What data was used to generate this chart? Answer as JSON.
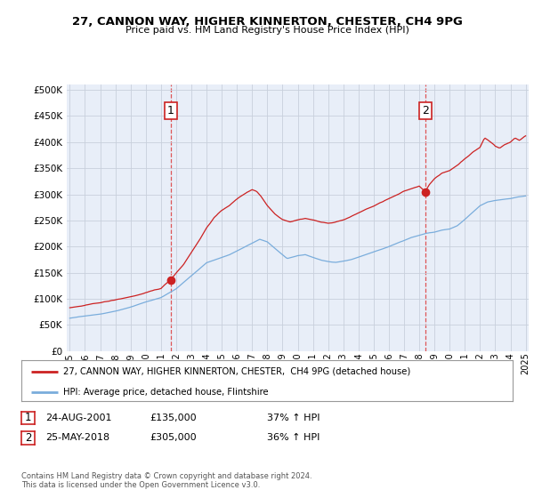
{
  "title": "27, CANNON WAY, HIGHER KINNERTON, CHESTER, CH4 9PG",
  "subtitle": "Price paid vs. HM Land Registry's House Price Index (HPI)",
  "background_color": "#ffffff",
  "grid_color": "#c8d0dc",
  "plot_bg_color": "#e8eef8",
  "sale1_date": 2001.64,
  "sale1_price": 135000,
  "sale1_label": "1",
  "sale2_date": 2018.39,
  "sale2_price": 305000,
  "sale2_label": "2",
  "legend_line1": "27, CANNON WAY, HIGHER KINNERTON, CHESTER,  CH4 9PG (detached house)",
  "legend_line2": "HPI: Average price, detached house, Flintshire",
  "table_row1": [
    "1",
    "24-AUG-2001",
    "£135,000",
    "37% ↑ HPI"
  ],
  "table_row2": [
    "2",
    "25-MAY-2018",
    "£305,000",
    "36% ↑ HPI"
  ],
  "footnote": "Contains HM Land Registry data © Crown copyright and database right 2024.\nThis data is licensed under the Open Government Licence v3.0.",
  "xlim": [
    1994.8,
    2025.2
  ],
  "ylim": [
    0,
    510000
  ],
  "yticks": [
    0,
    50000,
    100000,
    150000,
    200000,
    250000,
    300000,
    350000,
    400000,
    450000,
    500000
  ],
  "xticks": [
    1995,
    1996,
    1997,
    1998,
    1999,
    2000,
    2001,
    2002,
    2003,
    2004,
    2005,
    2006,
    2007,
    2008,
    2009,
    2010,
    2011,
    2012,
    2013,
    2014,
    2015,
    2016,
    2017,
    2018,
    2019,
    2020,
    2021,
    2022,
    2023,
    2024,
    2025
  ]
}
